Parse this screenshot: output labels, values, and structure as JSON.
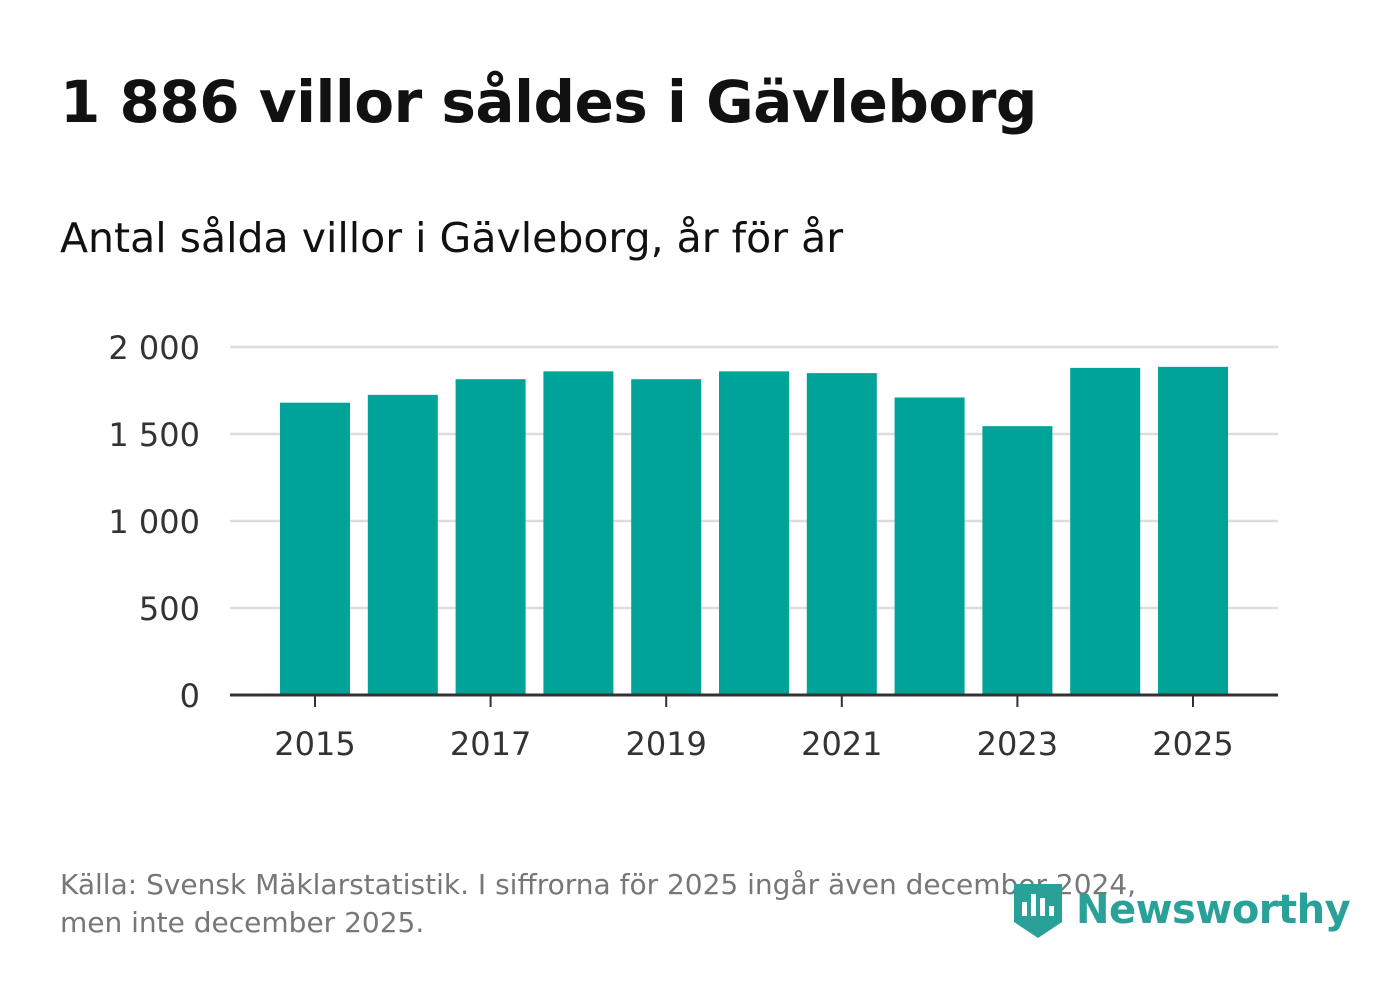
{
  "header": {
    "title": "1 886 villor såldes i Gävleborg",
    "subtitle": "Antal sålda villor i Gävleborg, år för år"
  },
  "footer": {
    "source_line1": "Källa: Svensk Mäklarstatistik. I siffrorna för 2025 ingår även december 2024,",
    "source_line2": "men inte december 2025."
  },
  "brand": {
    "name": "Newsworthy",
    "color": "#2aa198"
  },
  "colors": {
    "bar": "#00a398",
    "grid": "#dddddd",
    "axis": "#333333",
    "tick_text": "#333333"
  },
  "chart_data": {
    "type": "bar",
    "title": "Antal sålda villor i Gävleborg, år för år",
    "xlabel": "",
    "ylabel": "",
    "categories": [
      "2015",
      "2016",
      "2017",
      "2018",
      "2019",
      "2020",
      "2021",
      "2022",
      "2023",
      "2024",
      "2025"
    ],
    "values": [
      1680,
      1725,
      1815,
      1860,
      1815,
      1860,
      1850,
      1710,
      1545,
      1880,
      1886
    ],
    "ylim": [
      0,
      2000
    ],
    "yticks": [
      0,
      500,
      1000,
      1500,
      2000
    ],
    "ytick_labels": [
      "0",
      "500",
      "1 000",
      "1 500",
      "2 000"
    ],
    "xtick_labels": [
      "2015",
      "2017",
      "2019",
      "2021",
      "2023",
      "2025"
    ],
    "grid": true
  }
}
